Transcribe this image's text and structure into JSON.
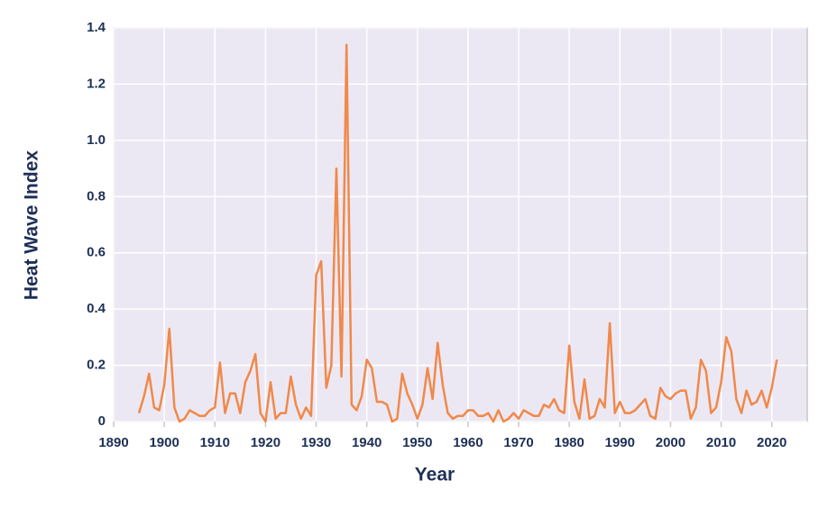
{
  "chart_data": {
    "type": "line",
    "x_label": "Year",
    "y_label": "Heat Wave Index",
    "x": [
      1895,
      1896,
      1897,
      1898,
      1899,
      1900,
      1901,
      1902,
      1903,
      1904,
      1905,
      1906,
      1907,
      1908,
      1909,
      1910,
      1911,
      1912,
      1913,
      1914,
      1915,
      1916,
      1917,
      1918,
      1919,
      1920,
      1921,
      1922,
      1923,
      1924,
      1925,
      1926,
      1927,
      1928,
      1929,
      1930,
      1931,
      1932,
      1933,
      1934,
      1935,
      1936,
      1937,
      1938,
      1939,
      1940,
      1941,
      1942,
      1943,
      1944,
      1945,
      1946,
      1947,
      1948,
      1949,
      1950,
      1951,
      1952,
      1953,
      1954,
      1955,
      1956,
      1957,
      1958,
      1959,
      1960,
      1961,
      1962,
      1963,
      1964,
      1965,
      1966,
      1967,
      1968,
      1969,
      1970,
      1971,
      1972,
      1973,
      1974,
      1975,
      1976,
      1977,
      1978,
      1979,
      1980,
      1981,
      1982,
      1983,
      1984,
      1985,
      1986,
      1987,
      1988,
      1989,
      1990,
      1991,
      1992,
      1993,
      1994,
      1995,
      1996,
      1997,
      1998,
      1999,
      2000,
      2001,
      2002,
      2003,
      2004,
      2005,
      2006,
      2007,
      2008,
      2009,
      2010,
      2011,
      2012,
      2013,
      2014,
      2015,
      2016,
      2017,
      2018,
      2019,
      2020,
      2021
    ],
    "series": [
      {
        "name": "Heat Wave Index",
        "color": "#f0894a",
        "values": [
          0.03,
          0.09,
          0.17,
          0.05,
          0.04,
          0.13,
          0.33,
          0.05,
          0.0,
          0.01,
          0.04,
          0.03,
          0.02,
          0.02,
          0.04,
          0.05,
          0.21,
          0.03,
          0.1,
          0.1,
          0.03,
          0.14,
          0.18,
          0.24,
          0.03,
          0.0,
          0.14,
          0.01,
          0.03,
          0.03,
          0.16,
          0.06,
          0.01,
          0.05,
          0.02,
          0.52,
          0.57,
          0.12,
          0.2,
          0.9,
          0.16,
          1.34,
          0.06,
          0.04,
          0.09,
          0.22,
          0.19,
          0.07,
          0.07,
          0.06,
          0.0,
          0.01,
          0.17,
          0.1,
          0.06,
          0.01,
          0.06,
          0.19,
          0.08,
          0.28,
          0.13,
          0.03,
          0.01,
          0.02,
          0.02,
          0.04,
          0.04,
          0.02,
          0.02,
          0.03,
          0.0,
          0.04,
          0.0,
          0.01,
          0.03,
          0.01,
          0.04,
          0.03,
          0.02,
          0.02,
          0.06,
          0.05,
          0.08,
          0.04,
          0.03,
          0.27,
          0.07,
          0.01,
          0.15,
          0.01,
          0.02,
          0.08,
          0.05,
          0.35,
          0.03,
          0.07,
          0.03,
          0.03,
          0.04,
          0.06,
          0.08,
          0.02,
          0.01,
          0.12,
          0.09,
          0.08,
          0.1,
          0.11,
          0.11,
          0.01,
          0.05,
          0.22,
          0.18,
          0.03,
          0.05,
          0.14,
          0.3,
          0.25,
          0.08,
          0.03,
          0.11,
          0.06,
          0.07,
          0.11,
          0.05,
          0.12,
          0.22
        ]
      }
    ],
    "xlim": [
      1890,
      2027
    ],
    "xticks": [
      1890,
      1900,
      1910,
      1920,
      1930,
      1940,
      1950,
      1960,
      1970,
      1980,
      1990,
      2000,
      2010,
      2020
    ],
    "ylim": [
      0,
      1.4
    ],
    "yticks": [
      0,
      0.2,
      0.4,
      0.6,
      0.8,
      {
        "value": 1,
        "label": "1.0"
      },
      1.2,
      1.4
    ],
    "grid": true,
    "background": "#ece8f3"
  }
}
